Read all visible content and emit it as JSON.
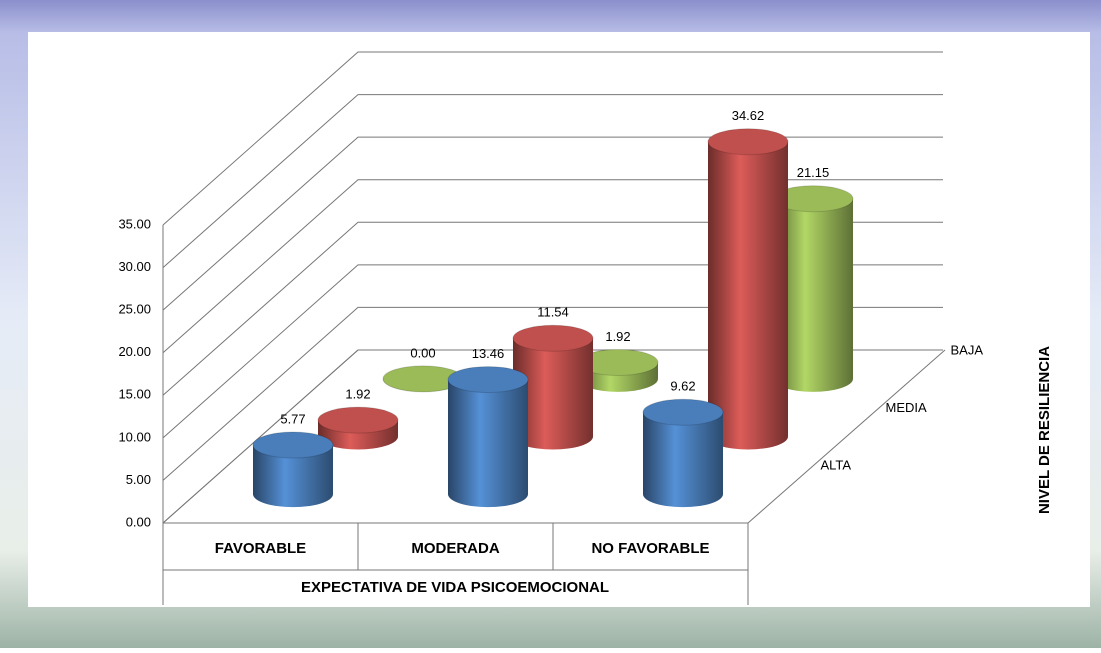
{
  "chart_data": {
    "type": "bar3d",
    "x_label": "EXPECTATIVA DE VIDA PSICOEMOCIONAL",
    "depth_label": "NIVEL DE RESILIENCIA",
    "categories": [
      "FAVORABLE",
      "MODERADA",
      "NO FAVORABLE"
    ],
    "series": [
      {
        "name": "ALTA",
        "color": "#4a7ebb",
        "values": [
          5.77,
          13.46,
          9.62
        ],
        "value_labels": [
          "5.77",
          "13.46",
          "9.62"
        ]
      },
      {
        "name": "MEDIA",
        "color": "#c0504d",
        "values": [
          1.92,
          11.54,
          34.62
        ],
        "value_labels": [
          "1.92",
          "11.54",
          "34.62"
        ]
      },
      {
        "name": "BAJA",
        "color": "#9bbb59",
        "values": [
          0,
          1.92,
          21.15
        ],
        "value_labels": [
          "0.00",
          "1.92",
          "21.15"
        ]
      }
    ],
    "ylim": [
      0,
      35
    ],
    "yticks": [
      {
        "value": 0,
        "label": "0.00"
      },
      {
        "value": 5,
        "label": "5.00"
      },
      {
        "value": 10,
        "label": "10.00"
      },
      {
        "value": 15,
        "label": "15.00"
      },
      {
        "value": 20,
        "label": "20.00"
      },
      {
        "value": 25,
        "label": "25.00"
      },
      {
        "value": 30,
        "label": "30.00"
      },
      {
        "value": 35,
        "label": "35.00"
      }
    ],
    "grid": true
  }
}
